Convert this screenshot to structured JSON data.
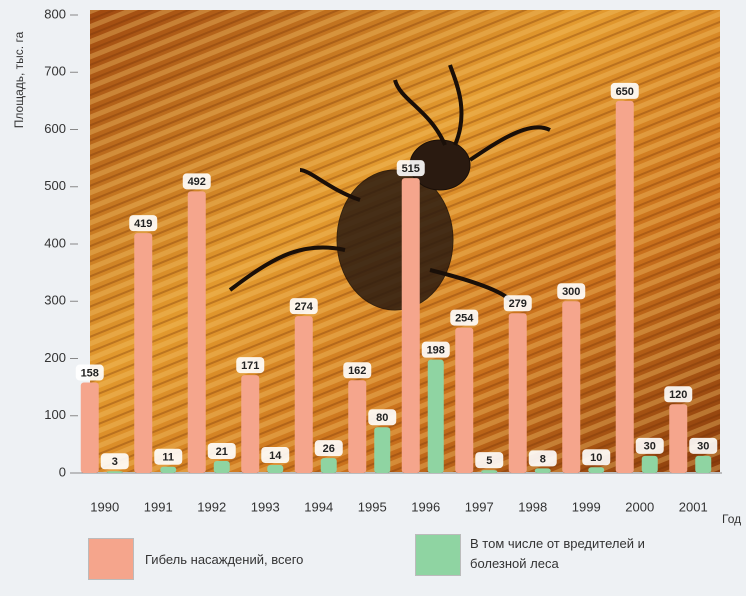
{
  "chart_data": {
    "type": "bar",
    "y_label": "Площадь, тыс. га",
    "x_label": "Год",
    "categories": [
      "1990",
      "1991",
      "1992",
      "1993",
      "1994",
      "1995",
      "1996",
      "1997",
      "1998",
      "1999",
      "2000",
      "2001"
    ],
    "series": [
      {
        "name": "Гибель насаждений, всего",
        "color": "#f5a58c",
        "values": [
          158,
          419,
          492,
          171,
          274,
          162,
          515,
          254,
          279,
          300,
          650,
          120
        ]
      },
      {
        "name": "В том числе от вредителей и болезной леса",
        "color": "#8fd4a2",
        "values": [
          3,
          11,
          21,
          14,
          26,
          80,
          198,
          5,
          8,
          10,
          30,
          30
        ]
      }
    ],
    "ylim": [
      0,
      800
    ],
    "yticks": [
      0,
      100,
      200,
      300,
      400,
      500,
      600,
      700,
      800
    ]
  }
}
